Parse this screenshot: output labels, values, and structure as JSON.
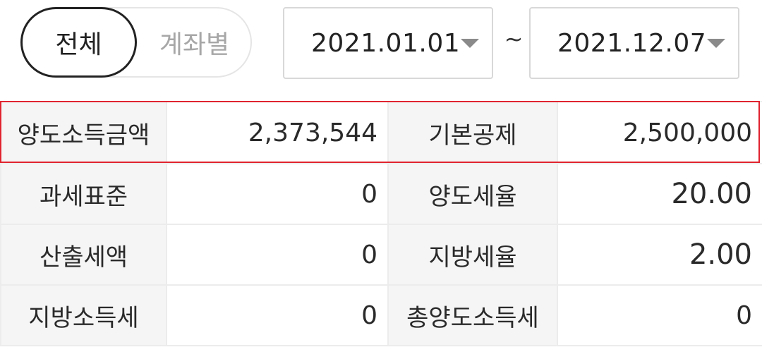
{
  "filter": {
    "all_label": "전체",
    "by_account_label": "계좌별"
  },
  "date_range": {
    "from": "2021.01.01",
    "separator": "~",
    "to": "2021.12.07"
  },
  "summary": {
    "rows": [
      {
        "label1": "양도소득금액",
        "value1": "2,373,544",
        "label2": "기본공제",
        "value2": "2,500,000"
      },
      {
        "label1": "과세표준",
        "value1": "0",
        "label2": "양도세율",
        "value2": "20.00"
      },
      {
        "label1": "산출세액",
        "value1": "0",
        "label2": "지방세율",
        "value2": "2.00"
      },
      {
        "label1": "지방소득세",
        "value1": "0",
        "label2": "총양도소득세",
        "value2": "0"
      }
    ]
  },
  "colors": {
    "highlight_border": "#e0242f",
    "label_bg": "#f5f5f5",
    "selected_border": "#222222",
    "unselected_text": "#a7a7a7"
  }
}
